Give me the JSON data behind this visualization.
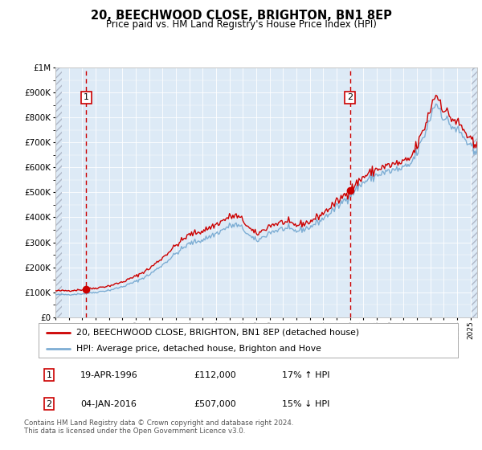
{
  "title": "20, BEECHWOOD CLOSE, BRIGHTON, BN1 8EP",
  "subtitle": "Price paid vs. HM Land Registry's House Price Index (HPI)",
  "legend_line1": "20, BEECHWOOD CLOSE, BRIGHTON, BN1 8EP (detached house)",
  "legend_line2": "HPI: Average price, detached house, Brighton and Hove",
  "annotation1_date": "19-APR-1996",
  "annotation1_price": "£112,000",
  "annotation1_hpi": "17% ↑ HPI",
  "annotation2_date": "04-JAN-2016",
  "annotation2_price": "£507,000",
  "annotation2_hpi": "15% ↓ HPI",
  "footer": "Contains HM Land Registry data © Crown copyright and database right 2024.\nThis data is licensed under the Open Government Licence v3.0.",
  "sale1_x": 1996.3,
  "sale1_y": 112000,
  "sale2_x": 2016.01,
  "sale2_y": 507000,
  "red_line_color": "#cc0000",
  "blue_line_color": "#7eaed4",
  "dot_color": "#cc0000",
  "vline_color": "#cc0000",
  "bg_color": "#ddeaf6",
  "hatch_color": "#b0b8c8",
  "ylim": [
    0,
    1000000
  ],
  "xlim_start": 1994.0,
  "xlim_end": 2025.5
}
